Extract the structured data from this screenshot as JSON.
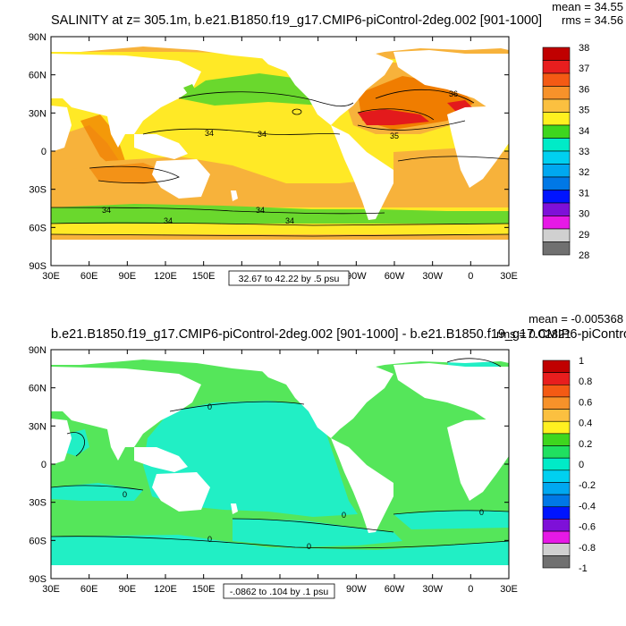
{
  "panels": [
    {
      "title": "SALINITY at z= 305.1m, b.e21.B1850.f19_g17.CMIP6-piControl-2deg.002 [901-1000]",
      "stats": {
        "mean": "mean = 34.55",
        "rms": "rms = 34.56"
      },
      "range_label": "32.67 to 42.22 by .5 psu",
      "contour_labels": [
        "34",
        "34",
        "34",
        "34",
        "34",
        "34",
        "35",
        "36"
      ],
      "legend_labels": [
        "38",
        "37",
        "36",
        "35",
        "34",
        "33",
        "32",
        "31",
        "30",
        "29",
        "28"
      ]
    },
    {
      "title": "b.e21.B1850.f19_g17.CMIP6-piControl-2deg.002 [901-1000] - b.e21.B1850.f19_g17.CMIP6-piControl-2deg",
      "stats": {
        "mean": "mean = -0.005368",
        "rms": "rms = 0.02821"
      },
      "range_label": "-.0862 to .104 by .1 psu",
      "contour_labels": [
        "0",
        "0",
        "0",
        "0",
        "0",
        "0"
      ],
      "legend_labels": [
        "1",
        "0.8",
        "0.6",
        "0.4",
        "0.2",
        "0",
        "-0.2",
        "-0.4",
        "-0.6",
        "-0.8",
        "-1"
      ]
    }
  ],
  "chart_data": [
    {
      "type": "heatmap",
      "title": "SALINITY at z= 305.1m, b.e21.B1850.f19_g17.CMIP6-piControl-2deg.002 [901-1000]",
      "xlabel": "longitude",
      "ylabel": "latitude",
      "x_ticks": [
        "30E",
        "60E",
        "90E",
        "120E",
        "150E",
        "180",
        "150W",
        "120W",
        "90W",
        "60W",
        "30W",
        "0",
        "30E"
      ],
      "y_ticks": [
        "90N",
        "60N",
        "30N",
        "0",
        "30S",
        "60S",
        "90S"
      ],
      "xlim": [
        30,
        390
      ],
      "ylim": [
        -90,
        90
      ],
      "color_levels": [
        28,
        29,
        30,
        31,
        32,
        33,
        34,
        35,
        36,
        37,
        38
      ],
      "mean": 34.55,
      "rms": 34.56,
      "min": 32.67,
      "max": 42.22,
      "contour_interval": 0.5,
      "units": "psu"
    },
    {
      "type": "heatmap",
      "title": "b.e21.B1850.f19_g17.CMIP6-piControl-2deg.002 [901-1000] - b.e21.B1850.f19_g17.CMIP6-piControl-2deg",
      "xlabel": "longitude",
      "ylabel": "latitude",
      "x_ticks": [
        "30E",
        "60E",
        "90E",
        "120E",
        "150E",
        "180",
        "150W",
        "120W",
        "90W",
        "60W",
        "30W",
        "0",
        "30E"
      ],
      "y_ticks": [
        "90N",
        "60N",
        "30N",
        "0",
        "30S",
        "60S",
        "90S"
      ],
      "xlim": [
        30,
        390
      ],
      "ylim": [
        -90,
        90
      ],
      "color_levels": [
        -1,
        -0.8,
        -0.6,
        -0.4,
        -0.2,
        0,
        0.2,
        0.4,
        0.6,
        0.8,
        1
      ],
      "mean": -0.005368,
      "rms": 0.02821,
      "min": -0.0862,
      "max": 0.104,
      "contour_interval": 0.1,
      "units": "psu"
    }
  ],
  "colors": {
    "sal_legend": [
      "#c00000",
      "#e81e1e",
      "#f45a14",
      "#f7922a",
      "#fbc040",
      "#fff020",
      "#3ed61e",
      "#00ebc7",
      "#00d0f0",
      "#00a8f0",
      "#0078e6",
      "#0014ff",
      "#7e10d8",
      "#e619e6",
      "#d0d0d0",
      "#707070"
    ],
    "diff_legend": [
      "#c00000",
      "#e81e1e",
      "#f45a14",
      "#f7922a",
      "#fbc040",
      "#fff020",
      "#3ed61e",
      "#20e060",
      "#00ebc7",
      "#00d0f0",
      "#00a8f0",
      "#0078e6",
      "#0014ff",
      "#7e10d8",
      "#e619e6",
      "#d0d0d0",
      "#707070"
    ],
    "sal_ocean": "#ffe926",
    "sal_orange": "#f7b23b",
    "sal_green": "#6ad82d",
    "sal_red": "#e31a1c",
    "sal_deep_orange": "#f07d00",
    "diff_ocean": "#21efc5",
    "diff_green": "#55e65a",
    "diff_cyan": "#35e9e0"
  }
}
